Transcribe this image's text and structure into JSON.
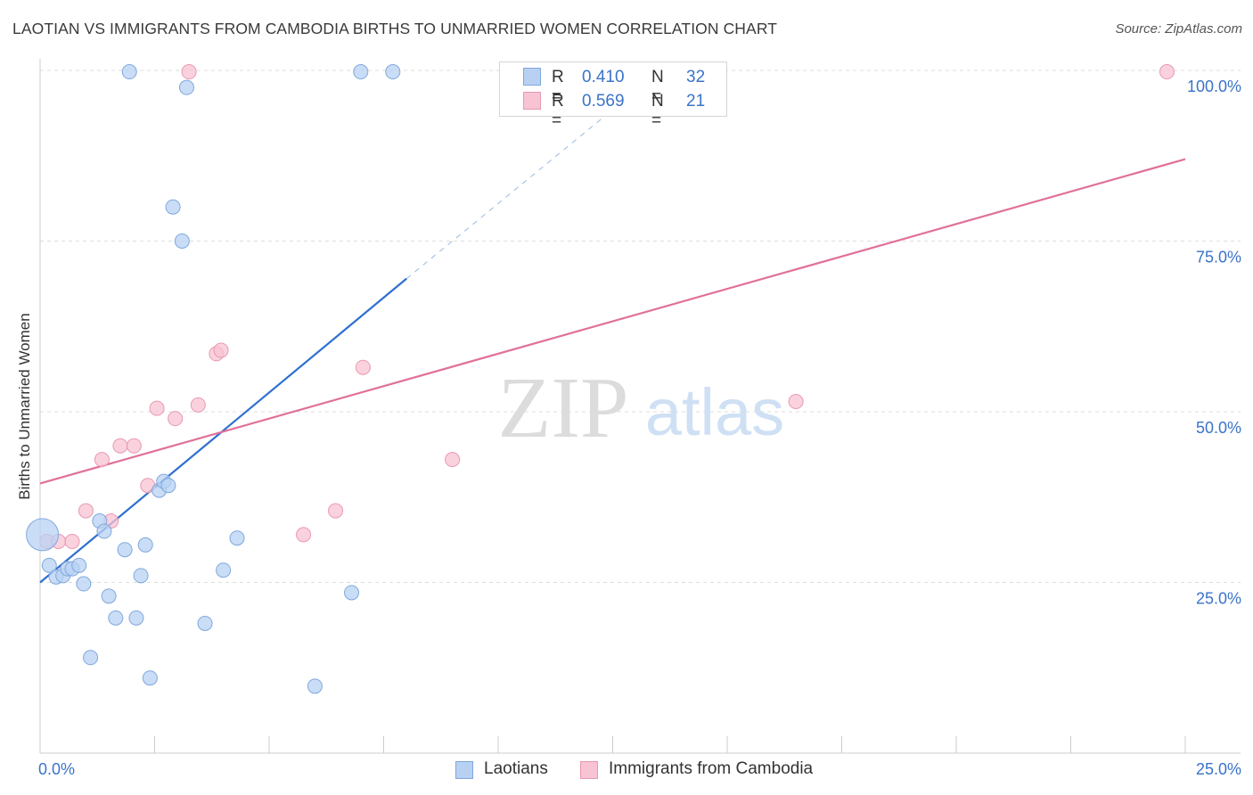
{
  "header": {
    "title": "LAOTIAN VS IMMIGRANTS FROM CAMBODIA BIRTHS TO UNMARRIED WOMEN CORRELATION CHART",
    "source": "Source: ZipAtlas.com"
  },
  "watermark": {
    "zip": "ZIP",
    "atlas": "atlas"
  },
  "legend_stats": [
    {
      "r_label": "R =",
      "r_value": "0.410",
      "n_label": "N =",
      "n_value": "32"
    },
    {
      "r_label": "R =",
      "r_value": "0.569",
      "n_label": "N =",
      "n_value": "21"
    }
  ],
  "colors": {
    "blue_fill": "#b8d1f3",
    "blue_stroke": "#7fa8dd",
    "blue_line": "#2e6fcf",
    "pink_fill": "#f8c3d3",
    "pink_stroke": "#e899b1",
    "pink_line": "#e0709a",
    "tick_label": "#3a73c9",
    "grid": "#dddddd"
  },
  "chart_data": {
    "type": "scatter",
    "title": "LAOTIAN VS IMMIGRANTS FROM CAMBODIA BIRTHS TO UNMARRIED WOMEN CORRELATION CHART",
    "xlabel": "",
    "ylabel": "Births to Unmarried Women",
    "xlim": [
      0,
      25
    ],
    "ylim": [
      0,
      102
    ],
    "x_tick_labels": [
      "0.0%",
      "25.0%"
    ],
    "y_ticks": [
      25,
      50,
      75,
      100
    ],
    "y_tick_labels": [
      "25.0%",
      "50.0%",
      "75.0%",
      "100.0%"
    ],
    "grid": true,
    "legend": "top-center and bottom",
    "series": [
      {
        "name": "Laotians",
        "r": 0.41,
        "n": 32,
        "points": [
          [
            0.05,
            32.0
          ],
          [
            0.2,
            27.5
          ],
          [
            0.35,
            25.8
          ],
          [
            0.5,
            26.0
          ],
          [
            0.6,
            27.0
          ],
          [
            0.7,
            27.0
          ],
          [
            0.85,
            27.5
          ],
          [
            0.95,
            24.8
          ],
          [
            1.1,
            14.0
          ],
          [
            1.3,
            34.0
          ],
          [
            1.4,
            32.5
          ],
          [
            1.5,
            23.0
          ],
          [
            1.65,
            19.8
          ],
          [
            1.85,
            29.8
          ],
          [
            1.95,
            99.8
          ],
          [
            2.1,
            19.8
          ],
          [
            2.2,
            26.0
          ],
          [
            2.3,
            30.5
          ],
          [
            2.4,
            11.0
          ],
          [
            2.6,
            38.5
          ],
          [
            2.7,
            39.8
          ],
          [
            2.8,
            39.2
          ],
          [
            2.9,
            80.0
          ],
          [
            3.1,
            75.0
          ],
          [
            3.2,
            97.5
          ],
          [
            3.6,
            19.0
          ],
          [
            4.0,
            26.8
          ],
          [
            4.3,
            31.5
          ],
          [
            6.0,
            9.8
          ],
          [
            6.8,
            23.5
          ],
          [
            7.0,
            99.8
          ],
          [
            7.7,
            99.8
          ]
        ],
        "trend": {
          "x": [
            0.0,
            8.0
          ],
          "y": [
            25.0,
            69.5
          ],
          "dashed_to": [
            13.0,
            97.0
          ]
        }
      },
      {
        "name": "Immigrants from Cambodia",
        "r": 0.569,
        "n": 21,
        "points": [
          [
            0.15,
            31.0
          ],
          [
            0.4,
            31.0
          ],
          [
            0.7,
            31.0
          ],
          [
            1.0,
            35.5
          ],
          [
            1.35,
            43.0
          ],
          [
            1.55,
            34.0
          ],
          [
            1.75,
            45.0
          ],
          [
            2.05,
            45.0
          ],
          [
            2.35,
            39.2
          ],
          [
            2.55,
            50.5
          ],
          [
            2.95,
            49.0
          ],
          [
            3.25,
            99.8
          ],
          [
            3.45,
            51.0
          ],
          [
            3.85,
            58.5
          ],
          [
            3.95,
            59.0
          ],
          [
            5.75,
            32.0
          ],
          [
            6.45,
            35.5
          ],
          [
            7.05,
            56.5
          ],
          [
            9.0,
            43.0
          ],
          [
            16.5,
            51.5
          ],
          [
            24.6,
            99.8
          ]
        ],
        "trend": {
          "x": [
            0.0,
            25.0
          ],
          "y": [
            39.5,
            87.0
          ]
        }
      }
    ]
  }
}
